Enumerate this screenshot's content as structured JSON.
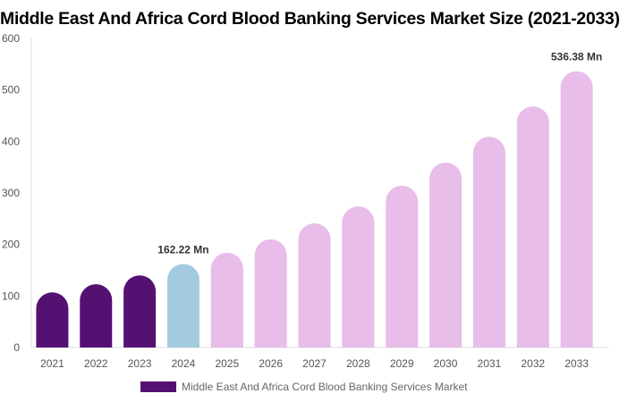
{
  "chart_data": {
    "type": "bar",
    "title": "Middle East And Africa Cord Blood Banking Services Market Size (2021-2033)",
    "categories": [
      "2021",
      "2022",
      "2023",
      "2024",
      "2025",
      "2026",
      "2027",
      "2028",
      "2029",
      "2030",
      "2031",
      "2032",
      "2033"
    ],
    "series": [
      {
        "name": "Middle East And Africa Cord Blood Banking Services Market",
        "values": [
          107,
          123,
          140,
          162.22,
          184,
          210,
          241,
          274,
          314,
          359,
          409,
          468,
          536.38
        ]
      }
    ],
    "data_labels": {
      "3": "162.22 Mn",
      "12": "536.38 Mn"
    },
    "ylim": [
      0,
      600
    ],
    "yticks": [
      0,
      100,
      200,
      300,
      400,
      500,
      600
    ],
    "grid": false,
    "legend": "bottom",
    "colors": {
      "historical": "#551172",
      "base_year": "#a3cbe0",
      "forecast": "#e8bde9"
    }
  }
}
